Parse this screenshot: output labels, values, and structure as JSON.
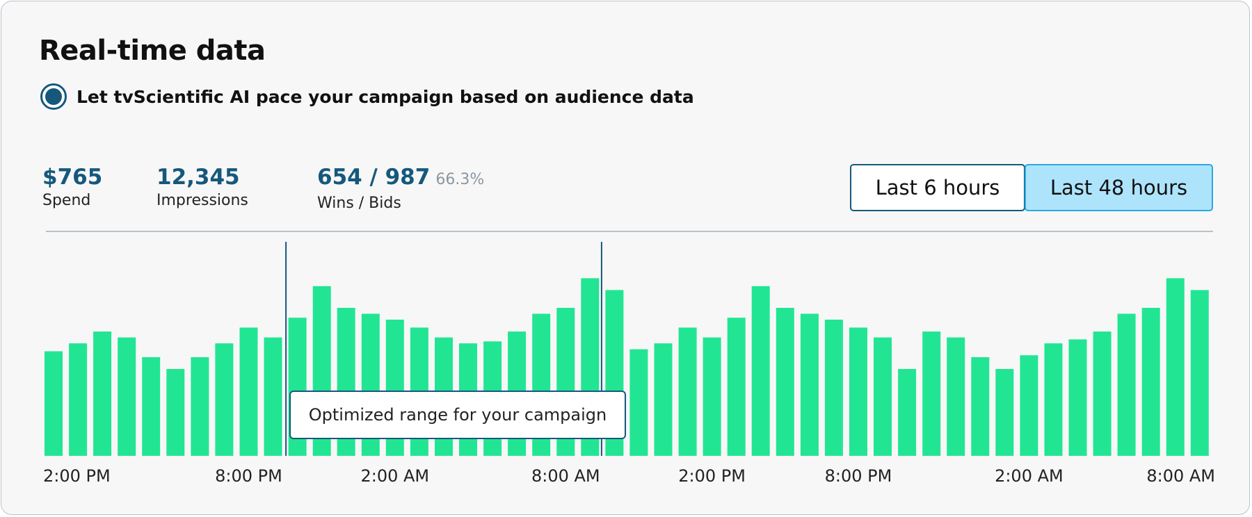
{
  "title": "Real-time data",
  "pacing_option": {
    "label": "Let tvScientific AI pace your campaign based on audience data",
    "selected": true
  },
  "metrics": {
    "spend": {
      "value": "$765",
      "label": "Spend"
    },
    "impressions": {
      "value": "12,345",
      "label": "Impressions"
    },
    "wins_bids": {
      "value": "654 / 987",
      "percent": "66.3%",
      "label": "Wins / Bids"
    }
  },
  "range_buttons": {
    "last6": "Last 6 hours",
    "last48": "Last 48 hours",
    "selected": "last48"
  },
  "tooltip": "Optimized range for your campaign",
  "colors": {
    "bar": "#22e593",
    "accent": "#15587c",
    "selected_button": "#aee4fb"
  },
  "chart_data": {
    "type": "bar",
    "title": "",
    "xlabel": "",
    "ylabel": "",
    "ylim": [
      0,
      100
    ],
    "grid": false,
    "x_tick_labels": [
      "2:00 PM",
      "8:00 PM",
      "2:00 AM",
      "8:00 AM",
      "2:00 PM",
      "8:00 PM",
      "2:00 AM",
      "8:00 AM"
    ],
    "x_tick_bar_index": [
      1,
      8,
      14,
      21,
      27,
      33,
      40,
      47
    ],
    "values": [
      53,
      57,
      63,
      60,
      50,
      44,
      50,
      57,
      65,
      60,
      70,
      86,
      75,
      72,
      69,
      65,
      60,
      57,
      58,
      63,
      72,
      75,
      90,
      84,
      54,
      57,
      65,
      60,
      70,
      86,
      75,
      72,
      69,
      65,
      60,
      44,
      63,
      60,
      50,
      44,
      51,
      57,
      59,
      63,
      72,
      75,
      90,
      84
    ],
    "highlight_range": [
      10,
      23
    ]
  }
}
